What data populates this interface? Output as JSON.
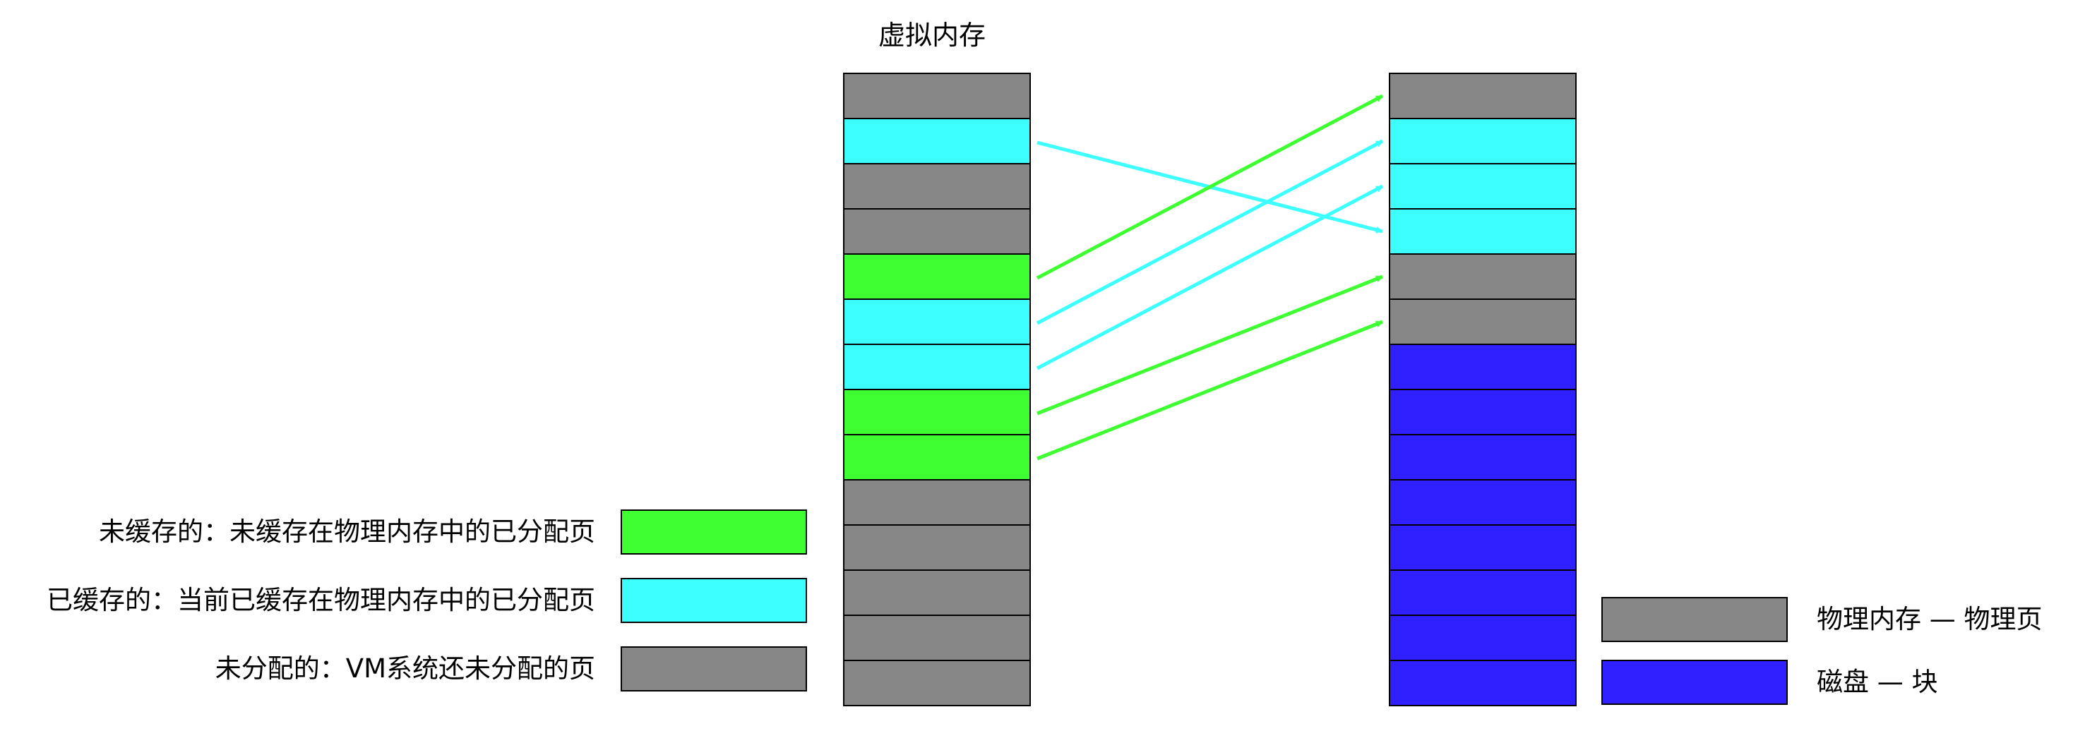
{
  "colors": {
    "uncached": "#3fff33",
    "cached": "#3dffff",
    "unallocated": "#878787",
    "disk": "#3020ff",
    "border": "#000000",
    "arrow_green": "#3fff33",
    "arrow_cyan": "#3dffff"
  },
  "virtual_memory": {
    "title": "虚拟内存",
    "pages": [
      "unallocated",
      "cached",
      "unallocated",
      "unallocated",
      "uncached",
      "cached",
      "cached",
      "uncached",
      "uncached",
      "unallocated",
      "unallocated",
      "unallocated",
      "unallocated",
      "unallocated"
    ]
  },
  "storage_blocks": [
    "unallocated",
    "cached",
    "cached",
    "cached",
    "unallocated",
    "unallocated",
    "disk",
    "disk",
    "disk",
    "disk",
    "disk",
    "disk",
    "disk",
    "disk"
  ],
  "mappings": [
    {
      "from_page": 1,
      "to_block": 3,
      "kind": "cached"
    },
    {
      "from_page": 4,
      "to_block": 0,
      "kind": "uncached"
    },
    {
      "from_page": 5,
      "to_block": 1,
      "kind": "cached"
    },
    {
      "from_page": 6,
      "to_block": 2,
      "kind": "cached"
    },
    {
      "from_page": 7,
      "to_block": 4,
      "kind": "uncached"
    },
    {
      "from_page": 8,
      "to_block": 5,
      "kind": "uncached"
    }
  ],
  "legend_left": [
    {
      "label": "未缓存的：未缓存在物理内存中的已分配页",
      "kind": "uncached"
    },
    {
      "label": "已缓存的：当前已缓存在物理内存中的已分配页",
      "kind": "cached"
    },
    {
      "label": "未分配的：VM系统还未分配的页",
      "kind": "unallocated"
    }
  ],
  "legend_right": [
    {
      "label": "物理内存 — 物理页",
      "kind": "unallocated"
    },
    {
      "label": "磁盘 — 块",
      "kind": "disk"
    }
  ]
}
